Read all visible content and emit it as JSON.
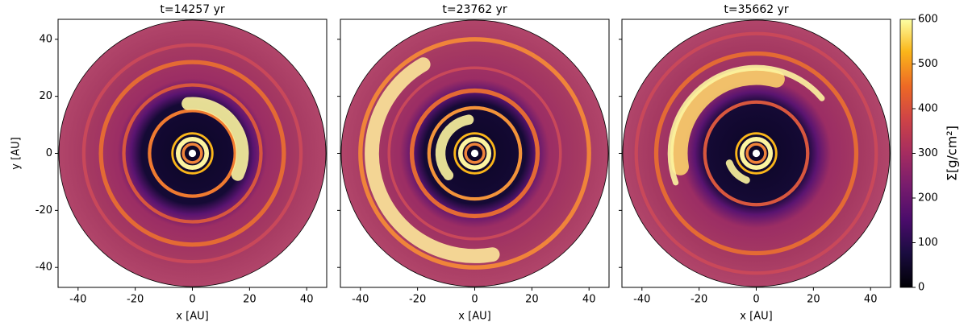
{
  "chart_data": [
    {
      "type": "heatmap",
      "title": "t=14257 yr",
      "xlabel": "x [AU]",
      "ylabel": "y [AU]",
      "xlim": [
        -47,
        47
      ],
      "ylim": [
        -47,
        47
      ],
      "xticks": [
        -40,
        -20,
        0,
        20,
        40
      ],
      "yticks": [
        -40,
        -20,
        0,
        20,
        40
      ]
    },
    {
      "type": "heatmap",
      "title": "t=23762 yr",
      "xlabel": "x [AU]",
      "xlim": [
        -47,
        47
      ],
      "ylim": [
        -47,
        47
      ],
      "xticks": [
        -40,
        -20,
        0,
        20,
        40
      ],
      "yticks": [
        -40,
        -20,
        0,
        20,
        40
      ],
      "yticklabels": false
    },
    {
      "type": "heatmap",
      "title": "t=35662 yr",
      "xlabel": "x [AU]",
      "xlim": [
        -47,
        47
      ],
      "ylim": [
        -47,
        47
      ],
      "xticks": [
        -40,
        -20,
        0,
        20,
        40
      ],
      "yticks": [
        -40,
        -20,
        0,
        20,
        40
      ],
      "yticklabels": false
    }
  ],
  "colorbar": {
    "label": "Σ[g/cm²]",
    "colormap": "inferno",
    "lim": [
      0,
      600
    ],
    "ticks": [
      0,
      100,
      200,
      300,
      400,
      500,
      600
    ]
  }
}
